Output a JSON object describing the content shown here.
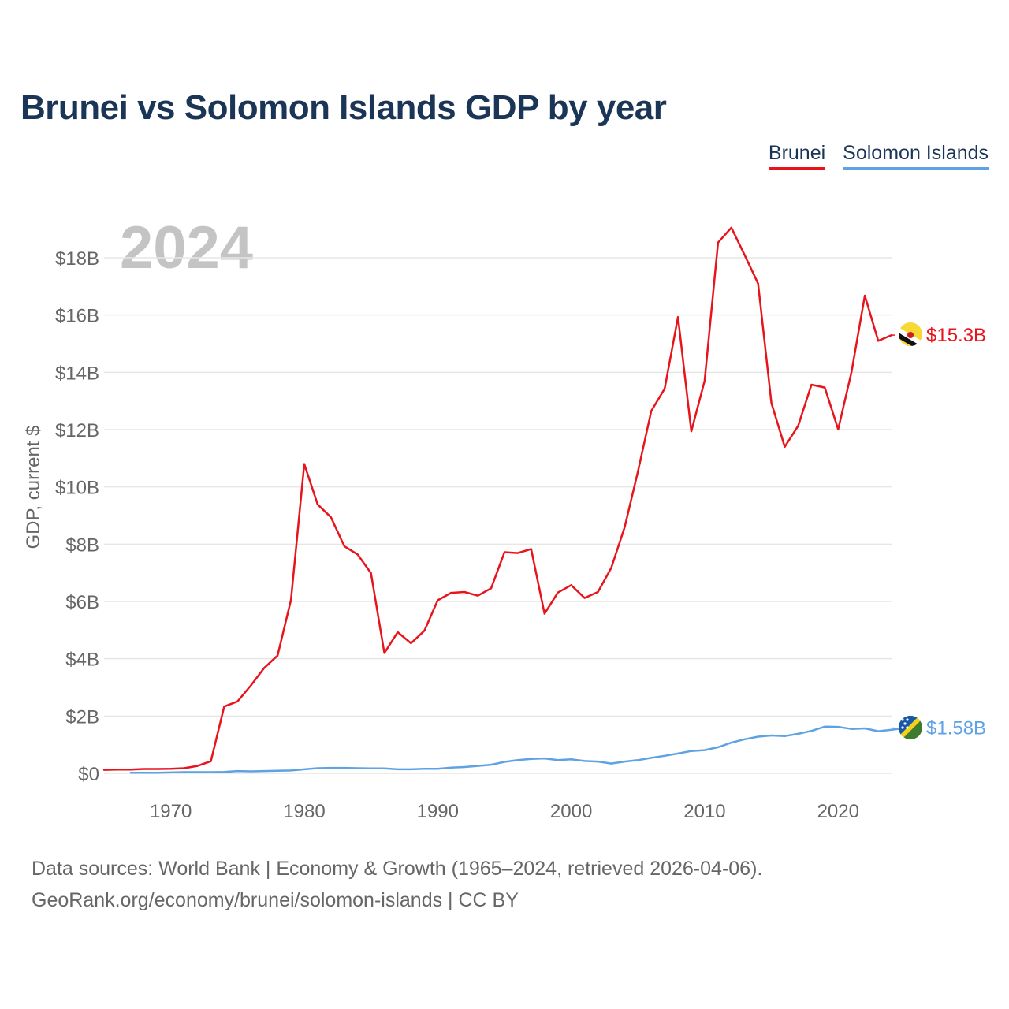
{
  "title": "Brunei vs Solomon Islands GDP by year",
  "legend": {
    "brunei": "Brunei",
    "solomon": "Solomon Islands"
  },
  "year_overlay": "2024",
  "source": {
    "line1": "Data sources: World Bank | Economy & Growth (1965–2024, retrieved 2026-04-06).",
    "line2": "GeoRank.org/economy/brunei/solomon-islands | CC BY"
  },
  "colors": {
    "brunei": "#e8141b",
    "solomon": "#5fa2e4",
    "grid": "#e6e6e6",
    "axis_text": "#666666",
    "year_overlay": "#c4c4c4"
  },
  "chart_data": {
    "type": "line",
    "title": "Brunei vs Solomon Islands GDP by year",
    "xlabel": "",
    "ylabel": "GDP, current $",
    "xlim": [
      1965,
      2024
    ],
    "ylim": [
      0,
      19.5
    ],
    "units": "billions USD",
    "x_ticks": [
      1970,
      1980,
      1990,
      2000,
      2010,
      2020
    ],
    "y_ticks": [
      0,
      2,
      4,
      6,
      8,
      10,
      12,
      14,
      16,
      18
    ],
    "y_tick_labels": [
      "$0",
      "$2B",
      "$4B",
      "$6B",
      "$8B",
      "$10B",
      "$12B",
      "$14B",
      "$16B",
      "$18B"
    ],
    "grid": true,
    "series": [
      {
        "name": "Brunei",
        "color": "#e8141b",
        "end_label": "$15.3B",
        "start_year": 1965,
        "values": [
          0.12,
          0.13,
          0.13,
          0.15,
          0.15,
          0.16,
          0.18,
          0.26,
          0.42,
          2.33,
          2.51,
          3.07,
          3.68,
          4.11,
          6.05,
          10.8,
          9.39,
          8.94,
          7.93,
          7.64,
          6.99,
          4.2,
          4.93,
          4.54,
          4.98,
          6.04,
          6.3,
          6.33,
          6.2,
          6.46,
          7.72,
          7.69,
          7.83,
          5.57,
          6.31,
          6.57,
          6.12,
          6.33,
          7.17,
          8.59,
          10.54,
          12.65,
          13.43,
          15.93,
          11.94,
          13.71,
          18.53,
          19.05,
          18.09,
          17.1,
          12.93,
          11.4,
          12.13,
          13.57,
          13.47,
          12.01,
          14.01,
          16.68,
          15.1,
          15.3
        ]
      },
      {
        "name": "Solomon Islands",
        "color": "#5fa2e4",
        "end_label": "$1.58B",
        "start_year": 1967,
        "values": [
          0.02,
          0.02,
          0.02,
          0.03,
          0.04,
          0.04,
          0.04,
          0.05,
          0.08,
          0.07,
          0.08,
          0.09,
          0.1,
          0.14,
          0.18,
          0.19,
          0.19,
          0.18,
          0.17,
          0.17,
          0.14,
          0.14,
          0.16,
          0.16,
          0.2,
          0.22,
          0.26,
          0.3,
          0.4,
          0.46,
          0.5,
          0.52,
          0.46,
          0.49,
          0.43,
          0.41,
          0.34,
          0.41,
          0.46,
          0.54,
          0.61,
          0.69,
          0.78,
          0.81,
          0.91,
          1.07,
          1.19,
          1.28,
          1.32,
          1.3,
          1.38,
          1.48,
          1.63,
          1.62,
          1.55,
          1.57,
          1.47,
          1.52,
          1.58
        ]
      }
    ]
  }
}
